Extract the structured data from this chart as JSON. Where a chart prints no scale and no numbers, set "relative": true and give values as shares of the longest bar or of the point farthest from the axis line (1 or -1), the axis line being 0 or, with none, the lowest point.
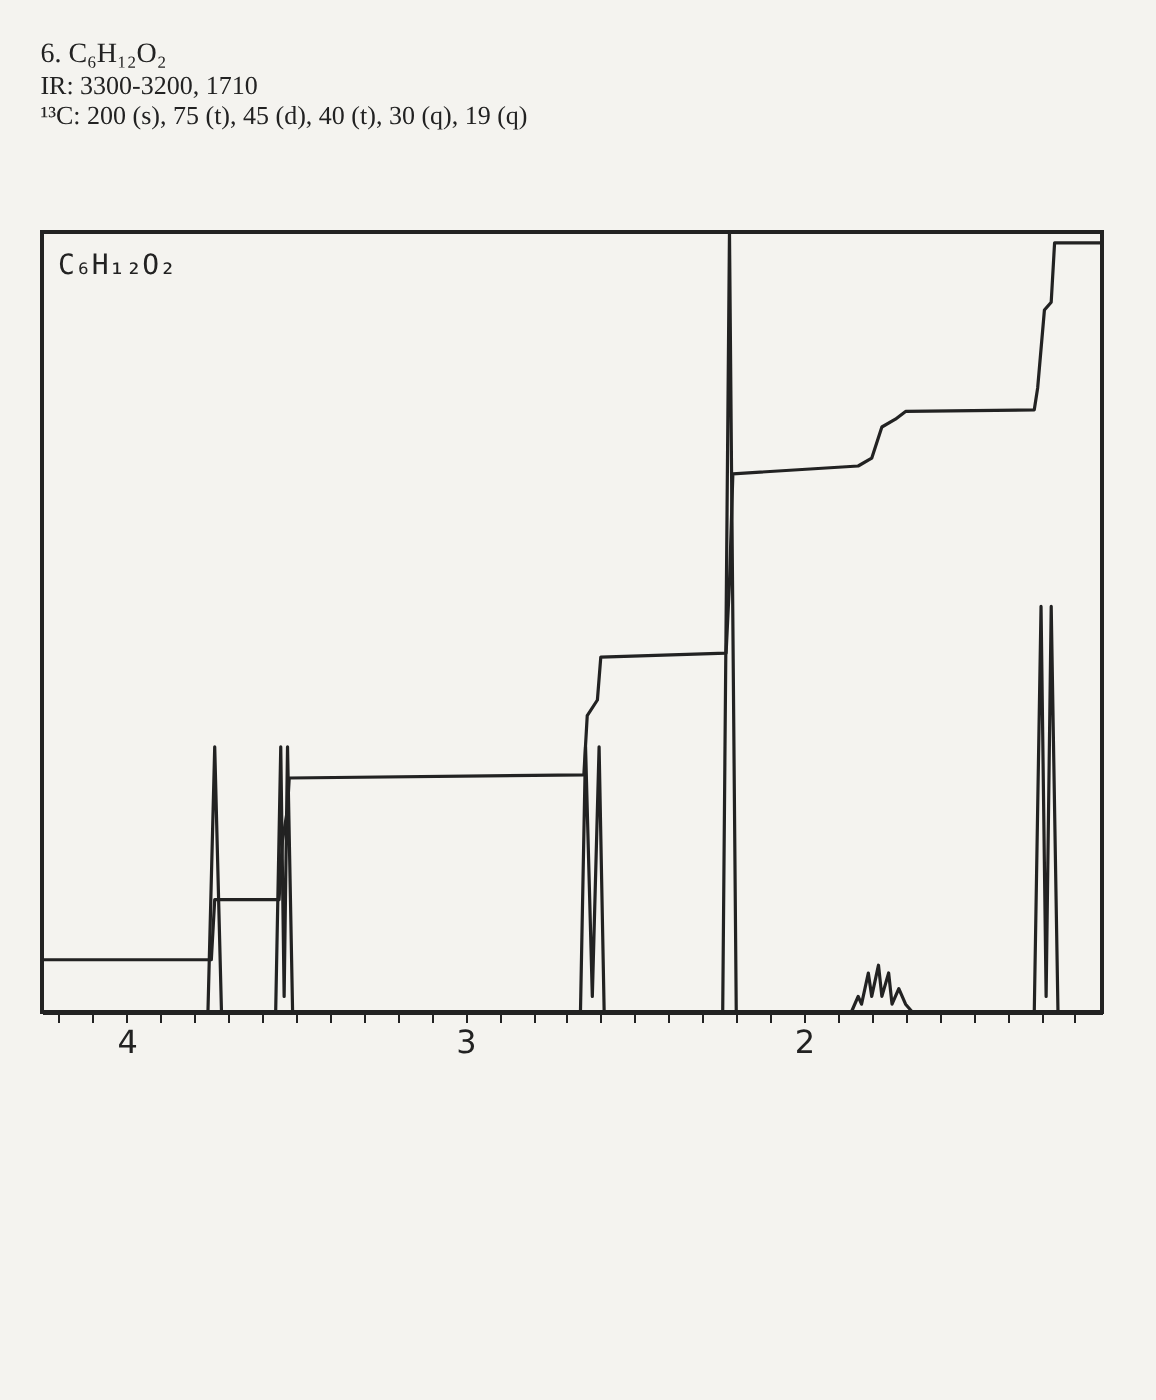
{
  "chart_data": {
    "type": "line",
    "title": "6. C₆H₁₂O₂",
    "subtitle": "IR: 3300-3200, 1710",
    "annotations": [
      "¹³C: 200 (s), 75 (t), 45 (d), 40 (t), 30 (q), 19 (q)",
      "C₆H₁₂O₂"
    ],
    "relative": true,
    "xlim": [
      4.25,
      1.12
    ],
    "xticks": [
      {
        "value": 4.2,
        "label": null
      },
      {
        "value": 4.1,
        "label": null
      },
      4,
      {
        "value": 3.9,
        "label": null
      },
      {
        "value": 3.8,
        "label": null
      },
      {
        "value": 3.7,
        "label": null
      },
      {
        "value": 3.6,
        "label": null
      },
      {
        "value": 3.5,
        "label": null
      },
      {
        "value": 3.4,
        "label": null
      },
      {
        "value": 3.3,
        "label": null
      },
      {
        "value": 3.2,
        "label": null
      },
      {
        "value": 3.1,
        "label": null
      },
      3,
      {
        "value": 2.9,
        "label": null
      },
      {
        "value": 2.8,
        "label": null
      },
      {
        "value": 2.7,
        "label": null
      },
      {
        "value": 2.6,
        "label": null
      },
      {
        "value": 2.5,
        "label": null
      },
      {
        "value": 2.4,
        "label": null
      },
      {
        "value": 2.3,
        "label": null
      },
      {
        "value": 2.2,
        "label": null
      },
      {
        "value": 2.1,
        "label": null
      },
      2,
      {
        "value": 1.9,
        "label": null
      },
      {
        "value": 1.8,
        "label": null
      },
      {
        "value": 1.7,
        "label": null
      },
      {
        "value": 1.6,
        "label": null
      },
      {
        "value": 1.5,
        "label": null
      },
      {
        "value": 1.4,
        "label": null
      },
      {
        "value": 1.3,
        "label": null
      },
      {
        "value": 1.2,
        "label": null
      }
    ],
    "tick_labels": "x",
    "marker": "none",
    "legend": false,
    "series": [
      {
        "color": "#222222",
        "x": [
          4.25,
          3.76,
          3.74,
          3.72,
          3.56,
          3.545,
          3.535,
          3.525,
          3.51,
          2.66,
          2.645,
          2.625,
          2.605,
          2.59,
          2.24,
          2.22,
          2.2,
          1.86,
          1.84,
          1.83,
          1.81,
          1.8,
          1.78,
          1.77,
          1.75,
          1.74,
          1.72,
          1.7,
          1.68,
          1.32,
          1.3,
          1.285,
          1.27,
          1.25,
          1.12
        ],
        "values": [
          0,
          0,
          0.34,
          0,
          0,
          0.34,
          0.02,
          0.34,
          0,
          0,
          0.34,
          0.02,
          0.34,
          0,
          0,
          1,
          0,
          0,
          0.02,
          0.01,
          0.05,
          0.02,
          0.06,
          0.02,
          0.05,
          0.01,
          0.03,
          0.01,
          0,
          0,
          0.52,
          0.02,
          0.52,
          0,
          0
        ]
      },
      {
        "color": "#222222",
        "x": [
          4.25,
          3.75,
          3.74,
          3.55,
          3.54,
          3.525,
          3.52,
          2.65,
          2.64,
          2.61,
          2.6,
          2.23,
          2.22,
          2.21,
          1.84,
          1.8,
          1.77,
          1.73,
          1.7,
          1.32,
          1.31,
          1.29,
          1.27,
          1.26,
          1.12
        ],
        "values": [
          0.067,
          0.067,
          0.144,
          0.144,
          0.22,
          0.26,
          0.3,
          0.304,
          0.38,
          0.4,
          0.455,
          0.46,
          0.55,
          0.69,
          0.7,
          0.71,
          0.75,
          0.76,
          0.77,
          0.772,
          0.8,
          0.9,
          0.91,
          0.986,
          0.986
        ]
      }
    ]
  }
}
